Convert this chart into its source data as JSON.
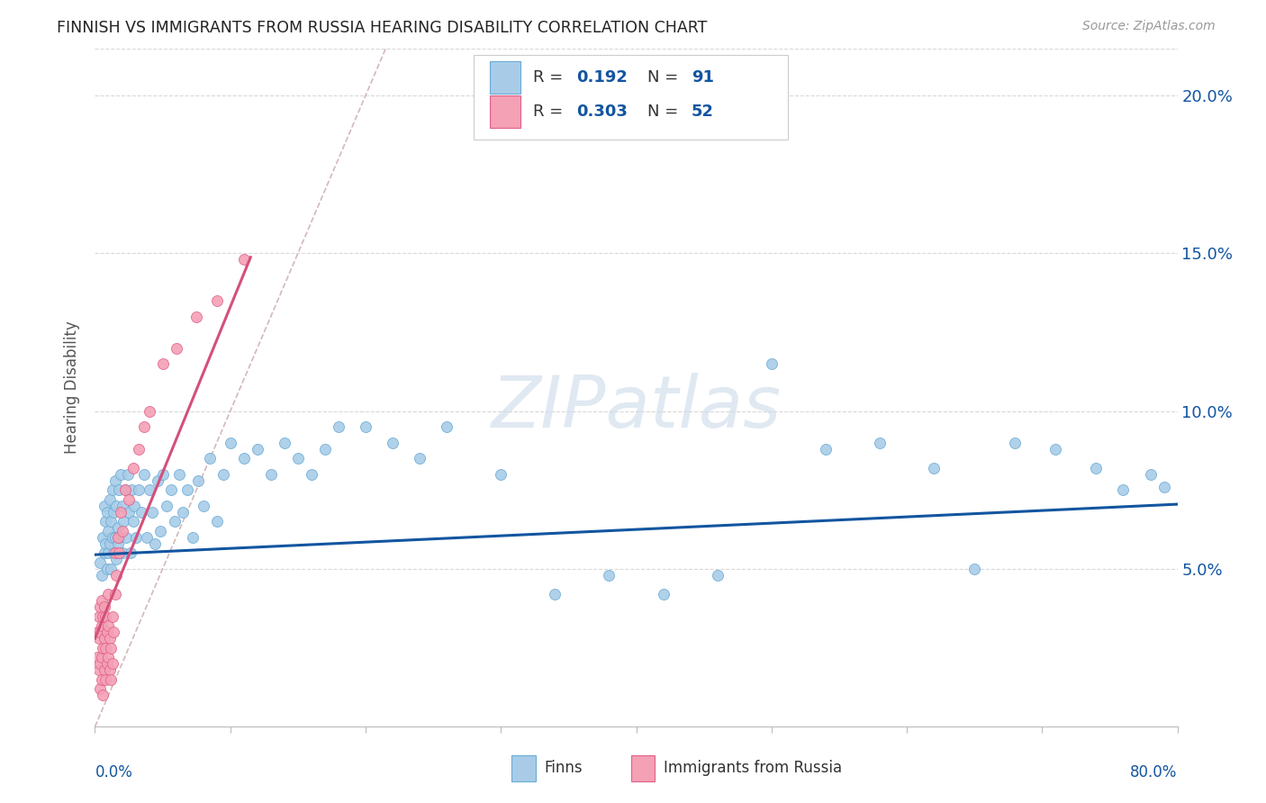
{
  "title": "FINNISH VS IMMIGRANTS FROM RUSSIA HEARING DISABILITY CORRELATION CHART",
  "source": "Source: ZipAtlas.com",
  "ylabel": "Hearing Disability",
  "xlim": [
    0,
    0.8
  ],
  "ylim": [
    0.0,
    0.215
  ],
  "yticks": [
    0.05,
    0.1,
    0.15,
    0.2
  ],
  "ytick_labels": [
    "5.0%",
    "10.0%",
    "15.0%",
    "20.0%"
  ],
  "xticks": [
    0.0,
    0.1,
    0.2,
    0.3,
    0.4,
    0.5,
    0.6,
    0.7,
    0.8
  ],
  "finns": {
    "name": "Finns",
    "color": "#a8cce8",
    "edge_color": "#6aaad4",
    "R": 0.192,
    "N": 91,
    "trend_slope": 0.02,
    "trend_intercept": 0.0545,
    "x": [
      0.004,
      0.005,
      0.006,
      0.007,
      0.007,
      0.008,
      0.008,
      0.009,
      0.009,
      0.01,
      0.01,
      0.011,
      0.011,
      0.012,
      0.012,
      0.013,
      0.013,
      0.014,
      0.014,
      0.015,
      0.015,
      0.016,
      0.016,
      0.017,
      0.017,
      0.018,
      0.018,
      0.019,
      0.02,
      0.02,
      0.021,
      0.022,
      0.023,
      0.024,
      0.025,
      0.026,
      0.027,
      0.028,
      0.029,
      0.03,
      0.032,
      0.034,
      0.036,
      0.038,
      0.04,
      0.042,
      0.044,
      0.046,
      0.048,
      0.05,
      0.053,
      0.056,
      0.059,
      0.062,
      0.065,
      0.068,
      0.072,
      0.076,
      0.08,
      0.085,
      0.09,
      0.095,
      0.1,
      0.11,
      0.12,
      0.13,
      0.14,
      0.15,
      0.16,
      0.17,
      0.18,
      0.2,
      0.22,
      0.24,
      0.26,
      0.3,
      0.34,
      0.38,
      0.42,
      0.46,
      0.5,
      0.54,
      0.58,
      0.62,
      0.65,
      0.68,
      0.71,
      0.74,
      0.76,
      0.78,
      0.79
    ],
    "y": [
      0.052,
      0.048,
      0.06,
      0.055,
      0.07,
      0.058,
      0.065,
      0.05,
      0.068,
      0.055,
      0.062,
      0.058,
      0.072,
      0.05,
      0.065,
      0.06,
      0.075,
      0.055,
      0.068,
      0.06,
      0.078,
      0.053,
      0.07,
      0.063,
      0.058,
      0.075,
      0.06,
      0.08,
      0.055,
      0.07,
      0.065,
      0.075,
      0.06,
      0.08,
      0.068,
      0.055,
      0.075,
      0.065,
      0.07,
      0.06,
      0.075,
      0.068,
      0.08,
      0.06,
      0.075,
      0.068,
      0.058,
      0.078,
      0.062,
      0.08,
      0.07,
      0.075,
      0.065,
      0.08,
      0.068,
      0.075,
      0.06,
      0.078,
      0.07,
      0.085,
      0.065,
      0.08,
      0.09,
      0.085,
      0.088,
      0.08,
      0.09,
      0.085,
      0.08,
      0.088,
      0.095,
      0.095,
      0.09,
      0.085,
      0.095,
      0.08,
      0.042,
      0.048,
      0.042,
      0.048,
      0.115,
      0.088,
      0.09,
      0.082,
      0.05,
      0.09,
      0.088,
      0.082,
      0.075,
      0.08,
      0.076
    ]
  },
  "russia": {
    "name": "Immigrants from Russia",
    "color": "#f4a0b5",
    "edge_color": "#e0608a",
    "R": 0.303,
    "N": 52,
    "trend_slope": 1.05,
    "trend_intercept": 0.028,
    "trend_xmax": 0.115,
    "x": [
      0.002,
      0.002,
      0.003,
      0.003,
      0.003,
      0.004,
      0.004,
      0.004,
      0.004,
      0.005,
      0.005,
      0.005,
      0.005,
      0.006,
      0.006,
      0.006,
      0.007,
      0.007,
      0.007,
      0.008,
      0.008,
      0.008,
      0.009,
      0.009,
      0.01,
      0.01,
      0.01,
      0.011,
      0.011,
      0.012,
      0.012,
      0.013,
      0.013,
      0.014,
      0.015,
      0.015,
      0.016,
      0.017,
      0.018,
      0.019,
      0.02,
      0.022,
      0.025,
      0.028,
      0.032,
      0.036,
      0.04,
      0.05,
      0.06,
      0.075,
      0.09,
      0.11
    ],
    "y": [
      0.022,
      0.03,
      0.018,
      0.028,
      0.035,
      0.012,
      0.02,
      0.03,
      0.038,
      0.015,
      0.022,
      0.032,
      0.04,
      0.01,
      0.025,
      0.035,
      0.018,
      0.028,
      0.038,
      0.015,
      0.025,
      0.035,
      0.02,
      0.03,
      0.022,
      0.032,
      0.042,
      0.018,
      0.028,
      0.015,
      0.025,
      0.035,
      0.02,
      0.03,
      0.042,
      0.055,
      0.048,
      0.06,
      0.055,
      0.068,
      0.062,
      0.075,
      0.072,
      0.082,
      0.088,
      0.095,
      0.1,
      0.115,
      0.12,
      0.13,
      0.135,
      0.148
    ]
  },
  "diag_line_color": "#d4b8b8",
  "blue_line_color": "#1255a0",
  "pink_line_color": "#d4507a",
  "watermark_text": "ZIPatlas",
  "legend_color": "#1255a0",
  "grid_color": "#d8d8d8",
  "background_color": "#ffffff"
}
